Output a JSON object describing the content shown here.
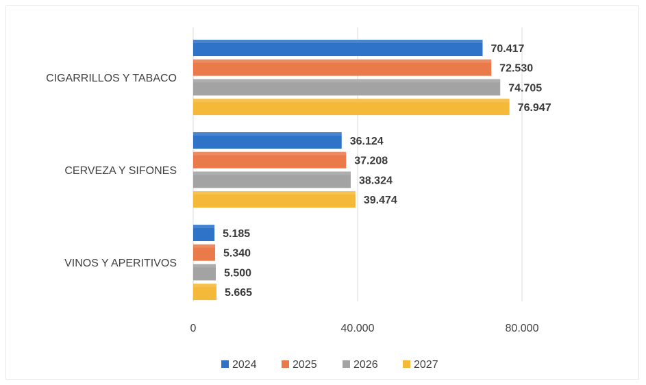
{
  "chart_data": {
    "type": "bar",
    "orientation": "horizontal",
    "categories": [
      "CIGARRILLOS Y TABACO",
      "CERVEZA Y SIFONES",
      "VINOS Y APERITIVOS"
    ],
    "series": [
      {
        "name": "2024",
        "color": "#2f73c9",
        "values": [
          70417,
          36124,
          5185
        ],
        "labels": [
          "70.417",
          "36.124",
          "5.185"
        ]
      },
      {
        "name": "2025",
        "color": "#ea7a4a",
        "values": [
          72530,
          37208,
          5340
        ],
        "labels": [
          "72.530",
          "37.208",
          "5.340"
        ]
      },
      {
        "name": "2026",
        "color": "#a3a3a3",
        "values": [
          74705,
          38324,
          5500
        ],
        "labels": [
          "74.705",
          "38.324",
          "5.500"
        ]
      },
      {
        "name": "2027",
        "color": "#f5b93a",
        "values": [
          76947,
          39474,
          5665
        ],
        "labels": [
          "76.947",
          "39.474",
          "5.665"
        ]
      }
    ],
    "xlim": [
      0,
      80000
    ],
    "xticks": [
      0,
      40000,
      80000
    ],
    "xtick_labels": [
      "0",
      "40.000",
      "80.000"
    ],
    "grid": "vertical",
    "legend_position": "bottom"
  }
}
